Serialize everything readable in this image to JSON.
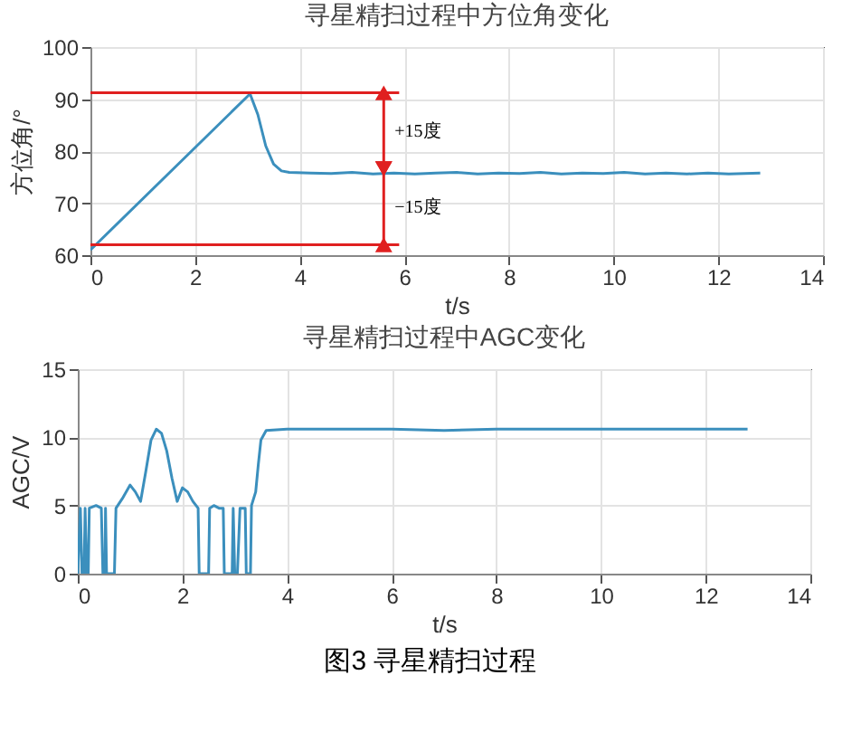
{
  "chart_data": [
    {
      "type": "line",
      "title": "寻星精扫过程中方位角变化",
      "xlabel": "t/s",
      "ylabel": "方位角/°",
      "xlim": [
        0,
        14
      ],
      "xticks": [
        0,
        2,
        4,
        6,
        8,
        10,
        12,
        14
      ],
      "ylim": [
        60,
        100
      ],
      "yticks": [
        60,
        70,
        80,
        90,
        100
      ],
      "grid": true,
      "line_style": "solid",
      "series": [
        {
          "color": "#3b8fbd",
          "x": [
            0,
            3.05,
            3.2,
            3.35,
            3.5,
            3.65,
            3.8,
            4.2,
            4.6,
            5,
            5.4,
            5.8,
            6.2,
            6.6,
            7,
            7.4,
            7.8,
            8.2,
            8.6,
            9,
            9.4,
            9.8,
            10.2,
            10.6,
            11,
            11.4,
            11.8,
            12.2,
            12.8
          ],
          "values": [
            61,
            91,
            87,
            81,
            77.5,
            76.2,
            75.9,
            75.8,
            75.7,
            75.9,
            75.6,
            75.8,
            75.6,
            75.8,
            75.9,
            75.6,
            75.8,
            75.7,
            75.9,
            75.6,
            75.8,
            75.7,
            75.9,
            75.6,
            75.8,
            75.6,
            75.8,
            75.6,
            75.8
          ]
        },
        {
          "color": "#e02020",
          "x": [
            0,
            5.9
          ],
          "values": [
            91.2,
            91.2
          ]
        },
        {
          "color": "#e02020",
          "x": [
            0,
            5.9
          ],
          "values": [
            62,
            62
          ]
        }
      ],
      "annotations": [
        "+15度",
        "−15度"
      ]
    },
    {
      "type": "line",
      "title": "寻星精扫过程中AGC变化",
      "xlabel": "t/s",
      "ylabel": "AGC/V",
      "xlim": [
        0,
        14
      ],
      "xticks": [
        0,
        2,
        4,
        6,
        8,
        10,
        12,
        14
      ],
      "ylim": [
        0,
        15
      ],
      "yticks": [
        0,
        5,
        10,
        15
      ],
      "grid": true,
      "line_style": "solid",
      "series": [
        {
          "color": "#3b8fbd",
          "x": [
            0,
            0.05,
            0.08,
            0.12,
            0.14,
            0.17,
            0.2,
            0.22,
            0.35,
            0.45,
            0.48,
            0.52,
            0.53,
            0.55,
            0.7,
            0.73,
            0.85,
            1.0,
            1.1,
            1.2,
            1.3,
            1.4,
            1.5,
            1.6,
            1.7,
            1.8,
            1.9,
            2.0,
            2.1,
            2.2,
            2.3,
            2.32,
            2.5,
            2.52,
            2.6,
            2.7,
            2.78,
            2.8,
            2.95,
            2.97,
            3.0,
            3.05,
            3.1,
            3.2,
            3.22,
            3.3,
            3.32,
            3.4,
            3.45,
            3.5,
            3.6,
            4,
            5,
            6,
            7,
            8,
            9,
            10,
            11,
            12,
            12.8
          ],
          "values": [
            0,
            4.8,
            0,
            0,
            4.8,
            0,
            0,
            4.8,
            5,
            4.8,
            0,
            0,
            4.8,
            0,
            0,
            4.8,
            5.5,
            6.5,
            6,
            5.3,
            7.5,
            9.8,
            10.6,
            10.3,
            9,
            7,
            5.3,
            6.3,
            6,
            5.3,
            4.8,
            0,
            0,
            4.8,
            5,
            4.8,
            4.8,
            0,
            0,
            4.8,
            0,
            0,
            4.8,
            4.8,
            0,
            0,
            5,
            6,
            8,
            9.8,
            10.5,
            10.6,
            10.6,
            10.6,
            10.5,
            10.6,
            10.6,
            10.6,
            10.6,
            10.6,
            10.6
          ]
        }
      ],
      "annotations": [
        "图3  寻星精扫过程"
      ]
    }
  ]
}
